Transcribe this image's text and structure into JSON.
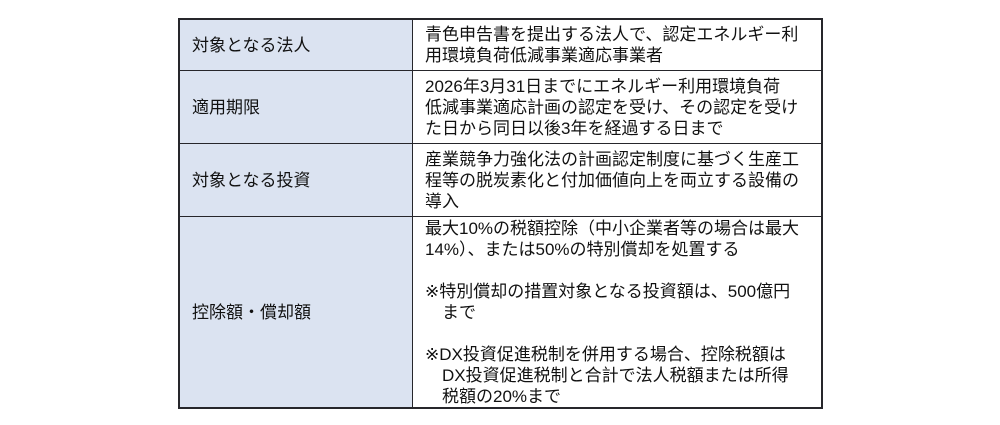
{
  "table": {
    "title_hint": "税制優遇措置の概要テーブル",
    "colors": {
      "label_cell_background": "#dbe3f1",
      "content_cell_background": "#ffffff",
      "border": "#26262b",
      "text": "#111111"
    },
    "rows": [
      {
        "label": "対象となる法人",
        "content": "青色申告書を提出する法人で、認定エネルギー利\n用環境負荷低減事業適応事業者"
      },
      {
        "label": "適用期限",
        "content": "2026年3月31日までにエネルギー利用環境負荷\n低減事業適応計画の認定を受け、その認定を受け\nた日から同日以後3年を経過する日まで"
      },
      {
        "label": "対象となる投資",
        "content": "産業競争力強化法の計画認定制度に基づく生産工\n程等の脱炭素化と付加価値向上を両立する設備の\n導入"
      },
      {
        "label": "控除額・償却額",
        "content": "最大10%の税額控除（中小企業者等の場合は最大\n14%）、または50%の特別償却を処置する\n\n※特別償却の措置対象となる投資額は、500億円\n　まで\n\n※DX投資促進税制を併用する場合、控除税額は\n　DX投資促進税制と合計で法人税額または所得\n　税額の20%まで"
      }
    ]
  }
}
